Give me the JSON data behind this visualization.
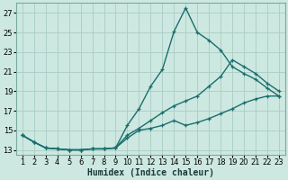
{
  "xlabel": "Humidex (Indice chaleur)",
  "bg_color": "#cce8e0",
  "grid_color": "#aaccc4",
  "line_color": "#1a6e6e",
  "xlim": [
    0.5,
    23.5
  ],
  "ylim": [
    12.5,
    28.0
  ],
  "xticks": [
    1,
    2,
    3,
    4,
    5,
    6,
    7,
    8,
    9,
    10,
    11,
    12,
    13,
    14,
    15,
    16,
    17,
    18,
    19,
    20,
    21,
    22,
    23
  ],
  "yticks": [
    13,
    15,
    17,
    19,
    21,
    23,
    25,
    27
  ],
  "line1_x": [
    1,
    2,
    3,
    4,
    5,
    6,
    7,
    8,
    9,
    10,
    11,
    12,
    13,
    14,
    15,
    16,
    17,
    18,
    19,
    20,
    21,
    22,
    23
  ],
  "line1_y": [
    14.5,
    13.8,
    13.2,
    13.1,
    13.0,
    13.0,
    13.1,
    13.1,
    13.2,
    15.5,
    17.2,
    19.5,
    21.2,
    25.1,
    27.5,
    25.0,
    24.2,
    23.2,
    21.5,
    20.8,
    20.2,
    19.3,
    18.5
  ],
  "line2_x": [
    1,
    2,
    3,
    4,
    5,
    6,
    7,
    8,
    9,
    10,
    11,
    12,
    13,
    14,
    15,
    16,
    17,
    18,
    19,
    20,
    21,
    22,
    23
  ],
  "line2_y": [
    14.5,
    13.8,
    13.2,
    13.1,
    13.0,
    13.0,
    13.1,
    13.1,
    13.2,
    14.2,
    15.0,
    15.2,
    15.5,
    16.0,
    15.5,
    15.8,
    16.2,
    16.7,
    17.2,
    17.8,
    18.2,
    18.5,
    18.5
  ],
  "line3_x": [
    1,
    2,
    3,
    4,
    5,
    6,
    7,
    8,
    9,
    10,
    11,
    12,
    13,
    14,
    15,
    16,
    17,
    18,
    19,
    20,
    21,
    22,
    23
  ],
  "line3_y": [
    14.5,
    13.8,
    13.2,
    13.1,
    13.0,
    13.0,
    13.1,
    13.1,
    13.2,
    14.5,
    15.2,
    16.0,
    16.8,
    17.5,
    18.0,
    18.5,
    19.5,
    20.5,
    22.2,
    21.5,
    20.8,
    19.8,
    19.0
  ],
  "marker": "+",
  "marker_size": 3,
  "line_width": 1.0,
  "xlabel_fontsize": 7,
  "tick_fontsize": 6
}
